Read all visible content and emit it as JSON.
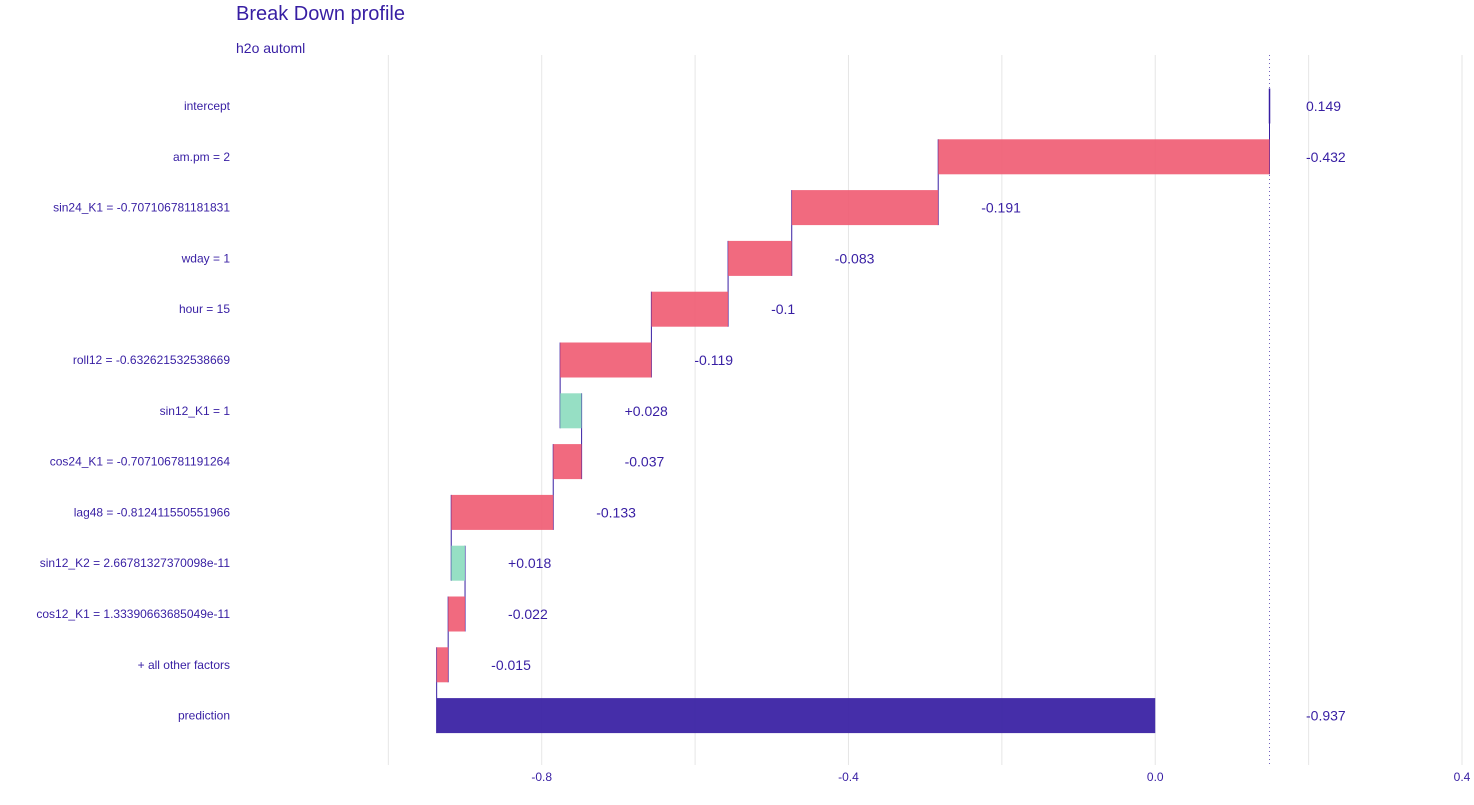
{
  "chart_data": {
    "type": "bar",
    "subtype": "waterfall",
    "title": "Break Down profile",
    "subtitle": "h2o automl",
    "xlim": [
      -1.05,
      0.4
    ],
    "x_ticks": [
      -0.8,
      -0.4,
      0.0,
      0.4
    ],
    "x_tick_labels": [
      "-0.8",
      "-0.4",
      "0.0",
      "0.4"
    ],
    "grid": true,
    "rows": [
      {
        "label": "intercept",
        "contribution": 0.149,
        "value_label": "0.149",
        "kind": "intercept"
      },
      {
        "label": "am.pm = 2",
        "contribution": -0.432,
        "value_label": "-0.432",
        "kind": "negative"
      },
      {
        "label": "sin24_K1 = -0.707106781181831",
        "contribution": -0.191,
        "value_label": "-0.191",
        "kind": "negative"
      },
      {
        "label": "wday = 1",
        "contribution": -0.083,
        "value_label": "-0.083",
        "kind": "negative"
      },
      {
        "label": "hour = 15",
        "contribution": -0.1,
        "value_label": "-0.1",
        "kind": "negative"
      },
      {
        "label": "roll12 = -0.632621532538669",
        "contribution": -0.119,
        "value_label": "-0.119",
        "kind": "negative"
      },
      {
        "label": "sin12_K1 = 1",
        "contribution": 0.028,
        "value_label": "+0.028",
        "kind": "positive"
      },
      {
        "label": "cos24_K1 = -0.707106781191264",
        "contribution": -0.037,
        "value_label": "-0.037",
        "kind": "negative"
      },
      {
        "label": "lag48 = -0.812411550551966",
        "contribution": -0.133,
        "value_label": "-0.133",
        "kind": "negative"
      },
      {
        "label": "sin12_K2 = 2.66781327370098e-11",
        "contribution": 0.018,
        "value_label": "+0.018",
        "kind": "positive"
      },
      {
        "label": "cos12_K1 = 1.33390663685049e-11",
        "contribution": -0.022,
        "value_label": "-0.022",
        "kind": "negative"
      },
      {
        "label": "+ all other factors",
        "contribution": -0.015,
        "value_label": "-0.015",
        "kind": "negative"
      },
      {
        "label": "prediction",
        "contribution": -0.937,
        "value_label": "-0.937",
        "kind": "prediction"
      }
    ],
    "colors": {
      "negative": "#f05a71",
      "positive": "#8bdcbe",
      "prediction": "#371ea3",
      "text": "#371ea3",
      "grid": "#e6e6e6"
    }
  }
}
